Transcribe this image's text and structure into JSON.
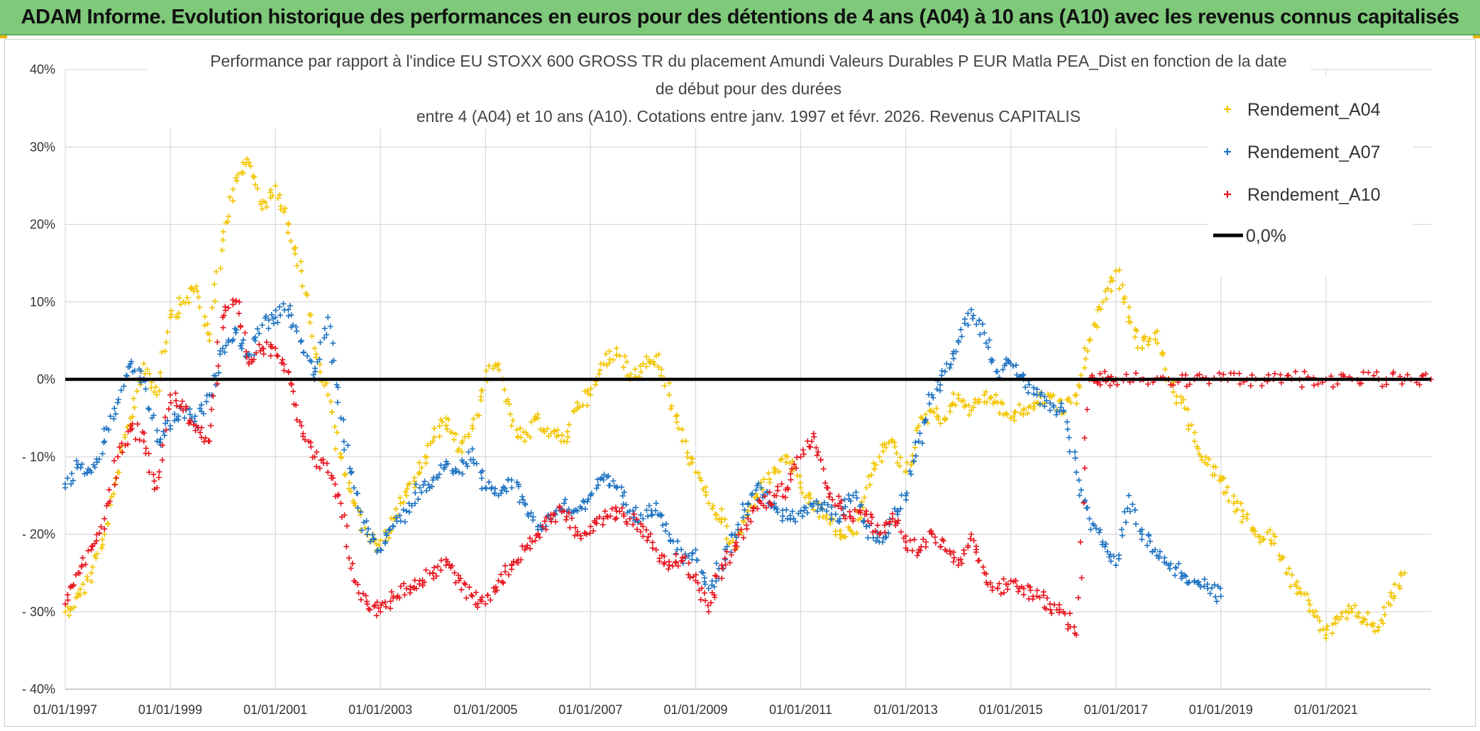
{
  "banner": {
    "text": "ADAM Informe. Evolution historique des performances en euros pour des détentions de 4 ans (A04) à 10 ans (A10) avec les revenus connus capitalisés"
  },
  "colors": {
    "banner_bg": "#7ec97a",
    "A04": "#f2c500",
    "A07": "#1f73c2",
    "A10": "#e8141e",
    "zero_line": "#000000",
    "grid": "#d9d9d9"
  },
  "chart_data": {
    "type": "scatter",
    "title_lines": [
      "Performance par rapport à l'indice EU STOXX 600 GROSS TR  du placement Amundi Valeurs Durables P EUR Matla PEA_Dist en fonction de la date",
      "de début pour des durées",
      "entre 4 (A04) et 10 ans (A10). Cotations entre janv. 1997 et févr. 2026. Revenus CAPITALIS"
    ],
    "x_type": "date",
    "xlim": [
      "1997-01-01",
      "2023-01-01"
    ],
    "x_tick_labels": [
      "01/01/1997",
      "01/01/1999",
      "01/01/2001",
      "01/01/2003",
      "01/01/2005",
      "01/01/2007",
      "01/01/2009",
      "01/01/2011",
      "01/01/2013",
      "01/01/2015",
      "01/01/2017",
      "01/01/2019",
      "01/01/2021"
    ],
    "x_ticks": [
      "1997-01-01",
      "1999-01-01",
      "2001-01-01",
      "2003-01-01",
      "2005-01-01",
      "2007-01-01",
      "2009-01-01",
      "2011-01-01",
      "2013-01-01",
      "2015-01-01",
      "2017-01-01",
      "2019-01-01",
      "2021-01-01"
    ],
    "ylim": [
      -40,
      40
    ],
    "y_ticks": [
      40,
      30,
      20,
      10,
      0,
      -10,
      -20,
      -30,
      -40
    ],
    "y_tick_labels": [
      "40%",
      "30%",
      "20%",
      "10%",
      "0%",
      "- 10%",
      "- 20%",
      "- 30%",
      "- 40%"
    ],
    "y_unit": "%",
    "grid": true,
    "legend_position": "right",
    "series": [
      {
        "name": "Rendement_A04",
        "marker": "plus",
        "color": "#f2c500",
        "x": [
          "1997-01-01",
          "1997-04-01",
          "1997-07-01",
          "1997-10-01",
          "1998-01-01",
          "1998-04-01",
          "1998-07-01",
          "1998-10-01",
          "1999-01-01",
          "1999-04-01",
          "1999-07-01",
          "1999-10-01",
          "2000-01-01",
          "2000-04-01",
          "2000-07-01",
          "2000-10-01",
          "2001-01-01",
          "2001-04-01",
          "2001-07-01",
          "2001-10-01",
          "2002-01-01",
          "2002-04-01",
          "2002-07-01",
          "2002-10-01",
          "2003-01-01",
          "2003-04-01",
          "2003-07-01",
          "2003-10-01",
          "2004-01-01",
          "2004-04-01",
          "2004-07-01",
          "2004-10-01",
          "2005-01-01",
          "2005-04-01",
          "2005-07-01",
          "2005-10-01",
          "2006-01-01",
          "2006-04-01",
          "2006-07-01",
          "2006-10-01",
          "2007-01-01",
          "2007-04-01",
          "2007-07-01",
          "2007-10-01",
          "2008-01-01",
          "2008-04-01",
          "2008-07-01",
          "2008-10-01",
          "2009-01-01",
          "2009-04-01",
          "2009-07-01",
          "2009-10-01",
          "2010-01-01",
          "2010-04-01",
          "2010-07-01",
          "2010-10-01",
          "2011-01-01",
          "2011-04-01",
          "2011-07-01",
          "2011-10-01",
          "2012-01-01",
          "2012-04-01",
          "2012-07-01",
          "2012-10-01",
          "2013-01-01",
          "2013-04-01",
          "2013-07-01",
          "2013-10-01",
          "2014-01-01",
          "2014-04-01",
          "2014-07-01",
          "2014-10-01",
          "2015-01-01",
          "2015-04-01",
          "2015-07-01",
          "2015-10-01",
          "2016-01-01",
          "2016-04-01",
          "2016-07-01",
          "2016-10-01",
          "2017-01-01",
          "2017-04-01",
          "2017-07-01",
          "2017-10-01",
          "2018-01-01",
          "2018-04-01",
          "2018-07-01",
          "2018-10-01",
          "2019-01-01",
          "2019-04-01",
          "2019-07-01",
          "2019-10-01",
          "2020-01-01",
          "2020-04-01",
          "2020-07-01",
          "2020-10-01",
          "2021-01-01",
          "2021-04-01",
          "2021-07-01",
          "2021-10-01",
          "2022-01-01",
          "2022-04-01",
          "2022-07-01"
        ],
        "y": [
          -30,
          -28,
          -25,
          -20,
          -12,
          -5,
          2,
          -2,
          8,
          10,
          12,
          5,
          18,
          26,
          28,
          22,
          25,
          20,
          14,
          4,
          -2,
          -10,
          -16,
          -20,
          -22,
          -18,
          -15,
          -12,
          -8,
          -5,
          -9,
          -6,
          0,
          2,
          -6,
          -8,
          -5,
          -7,
          -8,
          -3,
          -2,
          2,
          4,
          0,
          2,
          3,
          -2,
          -8,
          -12,
          -16,
          -18,
          -22,
          -17,
          -14,
          -12,
          -10,
          -14,
          -16,
          -18,
          -20,
          -20,
          -14,
          -10,
          -8,
          -12,
          -6,
          -4,
          -5,
          -2,
          -4,
          -2,
          -3,
          -5,
          -4,
          -3,
          -2,
          -4,
          -2,
          5,
          10,
          14,
          8,
          4,
          6,
          0,
          -3,
          -8,
          -11,
          -13,
          -16,
          -18,
          -21,
          -20,
          -25,
          -27,
          -30,
          -33,
          -31,
          -30,
          -31,
          -32,
          -28,
          -25
        ]
      },
      {
        "name": "Rendement_A07",
        "marker": "plus",
        "color": "#1f73c2",
        "x": [
          "1997-01-01",
          "1997-04-01",
          "1997-07-01",
          "1997-10-01",
          "1998-01-01",
          "1998-04-01",
          "1998-07-01",
          "1998-10-01",
          "1999-01-01",
          "1999-04-01",
          "1999-07-01",
          "1999-10-01",
          "2000-01-01",
          "2000-04-01",
          "2000-07-01",
          "2000-10-01",
          "2001-01-01",
          "2001-04-01",
          "2001-07-01",
          "2001-10-01",
          "2002-01-01",
          "2002-04-01",
          "2002-07-01",
          "2002-10-01",
          "2003-01-01",
          "2003-04-01",
          "2003-07-01",
          "2003-10-01",
          "2004-01-01",
          "2004-04-01",
          "2004-07-01",
          "2004-10-01",
          "2005-01-01",
          "2005-04-01",
          "2005-07-01",
          "2005-10-01",
          "2006-01-01",
          "2006-04-01",
          "2006-07-01",
          "2006-10-01",
          "2007-01-01",
          "2007-04-01",
          "2007-07-01",
          "2007-10-01",
          "2008-01-01",
          "2008-04-01",
          "2008-07-01",
          "2008-10-01",
          "2009-01-01",
          "2009-04-01",
          "2009-07-01",
          "2009-10-01",
          "2010-01-01",
          "2010-04-01",
          "2010-07-01",
          "2010-10-01",
          "2011-01-01",
          "2011-04-01",
          "2011-07-01",
          "2011-10-01",
          "2012-01-01",
          "2012-04-01",
          "2012-07-01",
          "2012-10-01",
          "2013-01-01",
          "2013-04-01",
          "2013-07-01",
          "2013-10-01",
          "2014-01-01",
          "2014-04-01",
          "2014-07-01",
          "2014-10-01",
          "2015-01-01",
          "2015-04-01",
          "2015-07-01",
          "2015-10-01",
          "2016-01-01",
          "2016-04-01",
          "2016-07-01",
          "2016-10-01",
          "2017-01-01",
          "2017-04-01",
          "2017-07-01",
          "2017-10-01",
          "2018-01-01",
          "2018-04-01",
          "2018-07-01",
          "2018-10-01",
          "2019-01-01"
        ],
        "y": [
          -14,
          -11,
          -12,
          -8,
          -3,
          2,
          0,
          -8,
          -6,
          -4,
          -6,
          -2,
          4,
          6,
          3,
          7,
          8,
          9,
          5,
          0,
          8,
          -5,
          -14,
          -20,
          -22,
          -19,
          -17,
          -14,
          -13,
          -11,
          -12,
          -9,
          -14,
          -15,
          -13,
          -16,
          -19,
          -18,
          -16,
          -17,
          -15,
          -13,
          -14,
          -17,
          -18,
          -16,
          -20,
          -23,
          -22,
          -27,
          -24,
          -20,
          -16,
          -14,
          -16,
          -18,
          -17,
          -16,
          -17,
          -18,
          -15,
          -19,
          -21,
          -18,
          -15,
          -8,
          -2,
          1,
          5,
          9,
          6,
          1,
          2,
          0,
          -2,
          -4,
          -4,
          -12,
          -18,
          -21,
          -24,
          -15,
          -20,
          -22,
          -24,
          -25,
          -26,
          -27,
          -28
        ]
      },
      {
        "name": "Rendement_A10",
        "marker": "plus",
        "color": "#e8141e",
        "x": [
          "1997-01-01",
          "1997-04-01",
          "1997-07-01",
          "1997-10-01",
          "1998-01-01",
          "1998-04-01",
          "1998-07-01",
          "1998-10-01",
          "1999-01-01",
          "1999-04-01",
          "1999-07-01",
          "1999-10-01",
          "2000-01-01",
          "2000-04-01",
          "2000-07-01",
          "2000-10-01",
          "2001-01-01",
          "2001-04-01",
          "2001-07-01",
          "2001-10-01",
          "2002-01-01",
          "2002-04-01",
          "2002-07-01",
          "2002-10-01",
          "2003-01-01",
          "2003-04-01",
          "2003-07-01",
          "2003-10-01",
          "2004-01-01",
          "2004-04-01",
          "2004-07-01",
          "2004-10-01",
          "2005-01-01",
          "2005-04-01",
          "2005-07-01",
          "2005-10-01",
          "2006-01-01",
          "2006-04-01",
          "2006-07-01",
          "2006-10-01",
          "2007-01-01",
          "2007-04-01",
          "2007-07-01",
          "2007-10-01",
          "2008-01-01",
          "2008-04-01",
          "2008-07-01",
          "2008-10-01",
          "2009-01-01",
          "2009-04-01",
          "2009-07-01",
          "2009-10-01",
          "2010-01-01",
          "2010-04-01",
          "2010-07-01",
          "2010-10-01",
          "2011-01-01",
          "2011-04-01",
          "2011-07-01",
          "2011-10-01",
          "2012-01-01",
          "2012-04-01",
          "2012-07-01",
          "2012-10-01",
          "2013-01-01",
          "2013-04-01",
          "2013-07-01",
          "2013-10-01",
          "2014-01-01",
          "2014-04-01",
          "2014-07-01",
          "2014-10-01",
          "2015-01-01",
          "2015-04-01",
          "2015-07-01",
          "2015-10-01",
          "2016-01-01",
          "2016-04-01",
          "2016-07-01",
          "2016-10-01",
          "2017-01-01",
          "2017-07-01",
          "2018-01-01",
          "2018-07-01",
          "2019-01-01",
          "2019-07-01",
          "2020-01-01",
          "2020-07-01",
          "2021-01-01",
          "2021-07-01",
          "2022-01-01",
          "2022-07-01",
          "2023-01-01"
        ],
        "y": [
          -29,
          -25,
          -22,
          -18,
          -10,
          -6,
          -8,
          -14,
          -2,
          -4,
          -6,
          -8,
          8,
          10,
          2,
          4,
          4,
          1,
          -6,
          -10,
          -12,
          -16,
          -26,
          -29,
          -30,
          -28,
          -27,
          -26,
          -25,
          -24,
          -26,
          -28,
          -29,
          -26,
          -24,
          -22,
          -20,
          -18,
          -17,
          -20,
          -19,
          -18,
          -17,
          -18,
          -19,
          -22,
          -24,
          -23,
          -26,
          -30,
          -24,
          -22,
          -18,
          -16,
          -15,
          -14,
          -10,
          -7,
          -14,
          -16,
          -18,
          -17,
          -20,
          -18,
          -21,
          -22,
          -20,
          -22,
          -24,
          -20,
          -25,
          -27,
          -26,
          -27,
          -28,
          -29,
          -30,
          -33,
          0,
          0,
          0,
          0,
          0,
          0,
          0,
          0,
          0,
          0,
          0,
          0,
          0,
          0,
          0
        ]
      }
    ],
    "reference_line": {
      "name": "0,0%",
      "y": 0
    }
  }
}
